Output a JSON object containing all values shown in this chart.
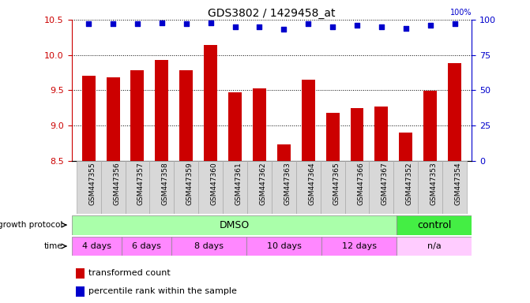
{
  "title": "GDS3802 / 1429458_at",
  "samples": [
    "GSM447355",
    "GSM447356",
    "GSM447357",
    "GSM447358",
    "GSM447359",
    "GSM447360",
    "GSM447361",
    "GSM447362",
    "GSM447363",
    "GSM447364",
    "GSM447365",
    "GSM447366",
    "GSM447367",
    "GSM447352",
    "GSM447353",
    "GSM447354"
  ],
  "transformed_count": [
    9.7,
    9.68,
    9.78,
    9.93,
    9.78,
    10.14,
    9.47,
    9.52,
    8.73,
    9.65,
    9.18,
    9.25,
    9.27,
    8.9,
    9.49,
    9.88
  ],
  "percentile_rank": [
    97,
    97,
    97,
    98,
    97,
    98,
    95,
    95,
    93,
    97,
    95,
    96,
    95,
    94,
    96,
    97
  ],
  "ylim_left": [
    8.5,
    10.5
  ],
  "ylim_right": [
    0,
    100
  ],
  "yticks_left": [
    8.5,
    9.0,
    9.5,
    10.0,
    10.5
  ],
  "yticks_right": [
    0,
    25,
    50,
    75,
    100
  ],
  "bar_color": "#cc0000",
  "dot_color": "#0000cc",
  "grid_color": "#000000",
  "bg_color": "#ffffff",
  "plot_bg": "#ffffff",
  "tick_label_color_left": "#cc0000",
  "tick_label_color_right": "#0000cc",
  "growth_protocol_label": "growth protocol",
  "growth_protocol_dmso": "DMSO",
  "growth_protocol_control": "control",
  "growth_protocol_dmso_color": "#aaffaa",
  "growth_protocol_control_color": "#44ee44",
  "time_label": "time",
  "time_color": "#ff88ff",
  "time_na_color": "#ffccff",
  "legend_tc": "transformed count",
  "legend_pr": "percentile rank within the sample",
  "time_ranges": [
    {
      "label": "4 days",
      "start": 0,
      "end": 2,
      "color": "#ff88ff"
    },
    {
      "label": "6 days",
      "start": 2,
      "end": 4,
      "color": "#ff88ff"
    },
    {
      "label": "8 days",
      "start": 4,
      "end": 7,
      "color": "#ff88ff"
    },
    {
      "label": "10 days",
      "start": 7,
      "end": 10,
      "color": "#ff88ff"
    },
    {
      "label": "12 days",
      "start": 10,
      "end": 13,
      "color": "#ff88ff"
    },
    {
      "label": "n/a",
      "start": 13,
      "end": 16,
      "color": "#ffccff"
    }
  ]
}
